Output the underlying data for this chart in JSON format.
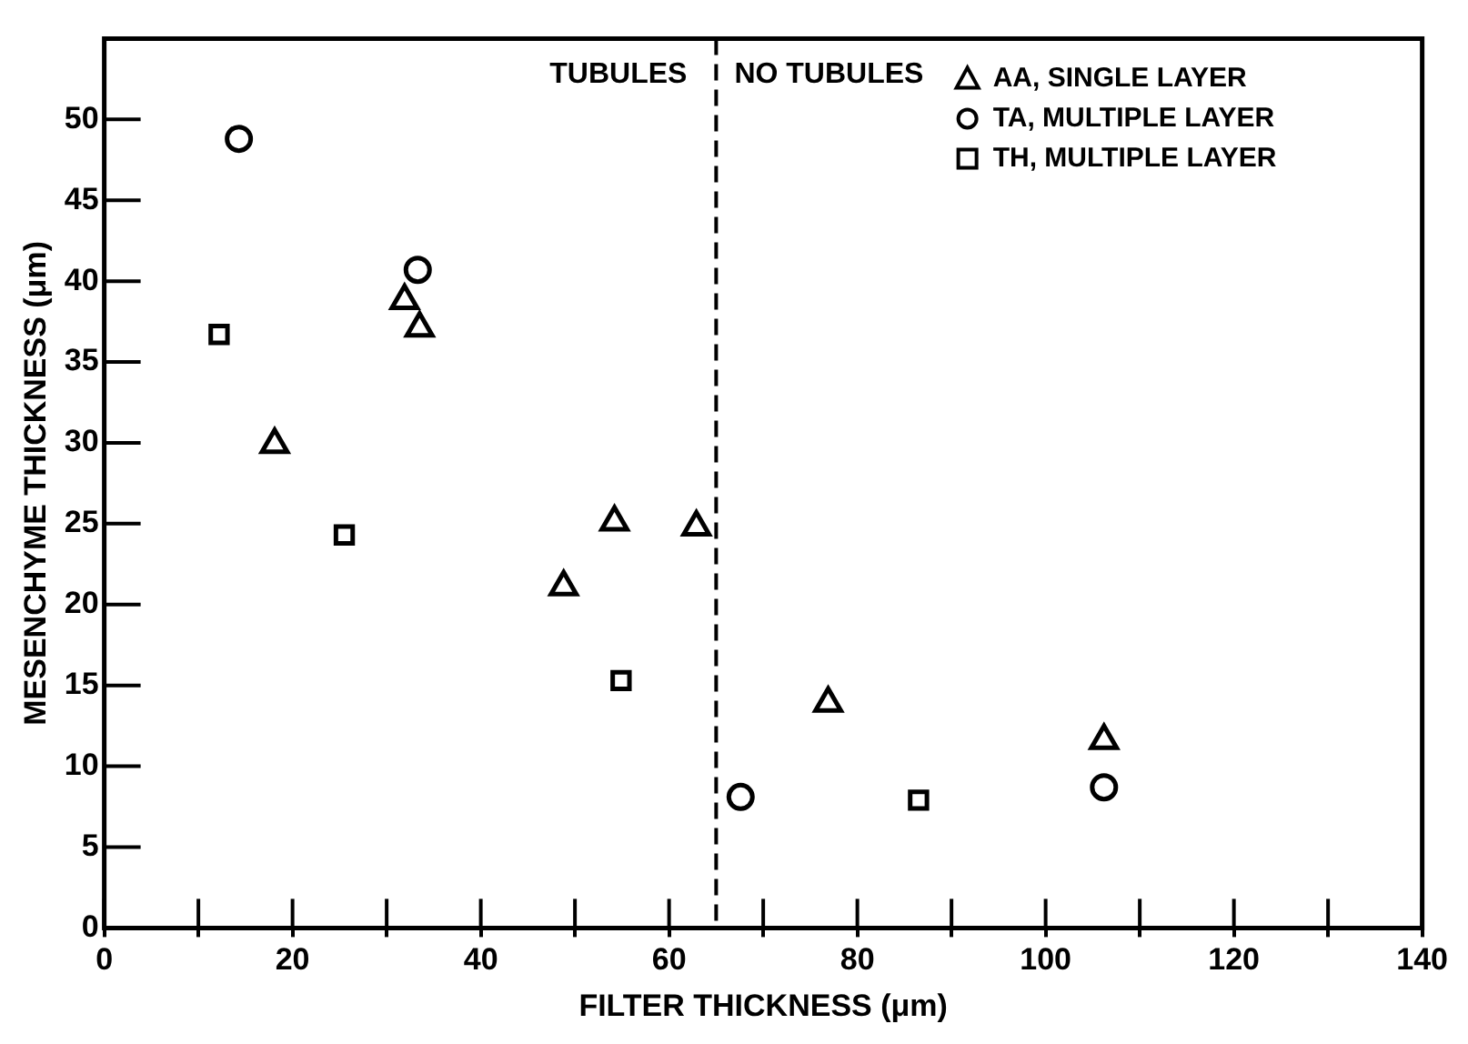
{
  "chart_data": {
    "type": "scatter",
    "xlabel": "FILTER THICKNESS (μm)",
    "ylabel": "MESENCHYME THICKNESS (μm)",
    "xlim": [
      0,
      140
    ],
    "ylim": [
      0,
      55
    ],
    "xticks": [
      0,
      {
        "value": 10,
        "label": null
      },
      20,
      {
        "value": 30,
        "label": null
      },
      40,
      {
        "value": 50,
        "label": null
      },
      60,
      {
        "value": 70,
        "label": null
      },
      80,
      {
        "value": 90,
        "label": null
      },
      100,
      {
        "value": 110,
        "label": null
      },
      120,
      {
        "value": 130,
        "label": null
      },
      140
    ],
    "yticks": [
      0,
      5,
      10,
      15,
      20,
      25,
      30,
      35,
      40,
      45,
      50
    ],
    "grid": false,
    "legend": "top right",
    "series": [
      {
        "name": "AA, SINGLE LAYER",
        "color": "#000000",
        "marker": "triangle",
        "x": [
          18.1,
          31.9,
          33.5,
          48.8,
          54.2,
          62.9,
          76.9,
          106.2
        ],
        "values": [
          29.9,
          38.8,
          37.1,
          21.1,
          25.1,
          24.8,
          13.9,
          11.6
        ]
      },
      {
        "name": "TA, MULTIPLE LAYER",
        "color": "#000000",
        "marker": "circle",
        "x": [
          14.3,
          33.3,
          67.6,
          106.2
        ],
        "values": [
          48.8,
          40.7,
          8.1,
          8.7
        ]
      },
      {
        "name": "TH, MULTIPLE LAYER",
        "color": "#000000",
        "marker": "square",
        "x": [
          12.2,
          25.5,
          54.9,
          86.5
        ],
        "values": [
          36.7,
          24.3,
          15.3,
          7.9
        ]
      }
    ],
    "ref_lines": [
      {
        "axis": "x",
        "value": 65,
        "line_style": "dashed",
        "color": "#000000"
      }
    ],
    "annotations": [
      "TUBULES",
      "NO TUBULES"
    ]
  }
}
